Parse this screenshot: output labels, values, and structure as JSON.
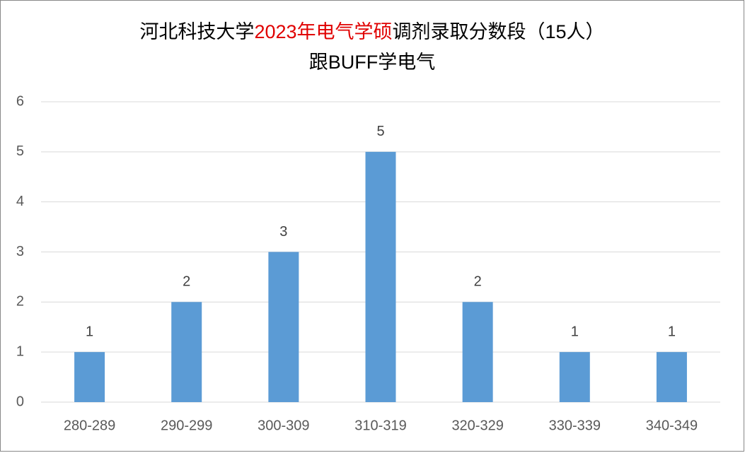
{
  "chart_data": {
    "type": "bar",
    "title": [
      {
        "text": "河北科技大学",
        "color": "#000000"
      },
      {
        "text": "2023年电气学硕",
        "color": "#e00000"
      },
      {
        "text": "调剂录取分数段（15人）",
        "color": "#000000"
      }
    ],
    "subtitle": "跟BUFF学电气",
    "categories": [
      "280-289",
      "290-299",
      "300-309",
      "310-319",
      "320-329",
      "330-339",
      "340-349"
    ],
    "values": [
      1,
      2,
      3,
      5,
      2,
      1,
      1
    ],
    "color": "#5b9bd5",
    "ylim": [
      0,
      6
    ],
    "yticks": [
      0,
      1,
      2,
      3,
      4,
      5,
      6
    ],
    "grid": true
  }
}
